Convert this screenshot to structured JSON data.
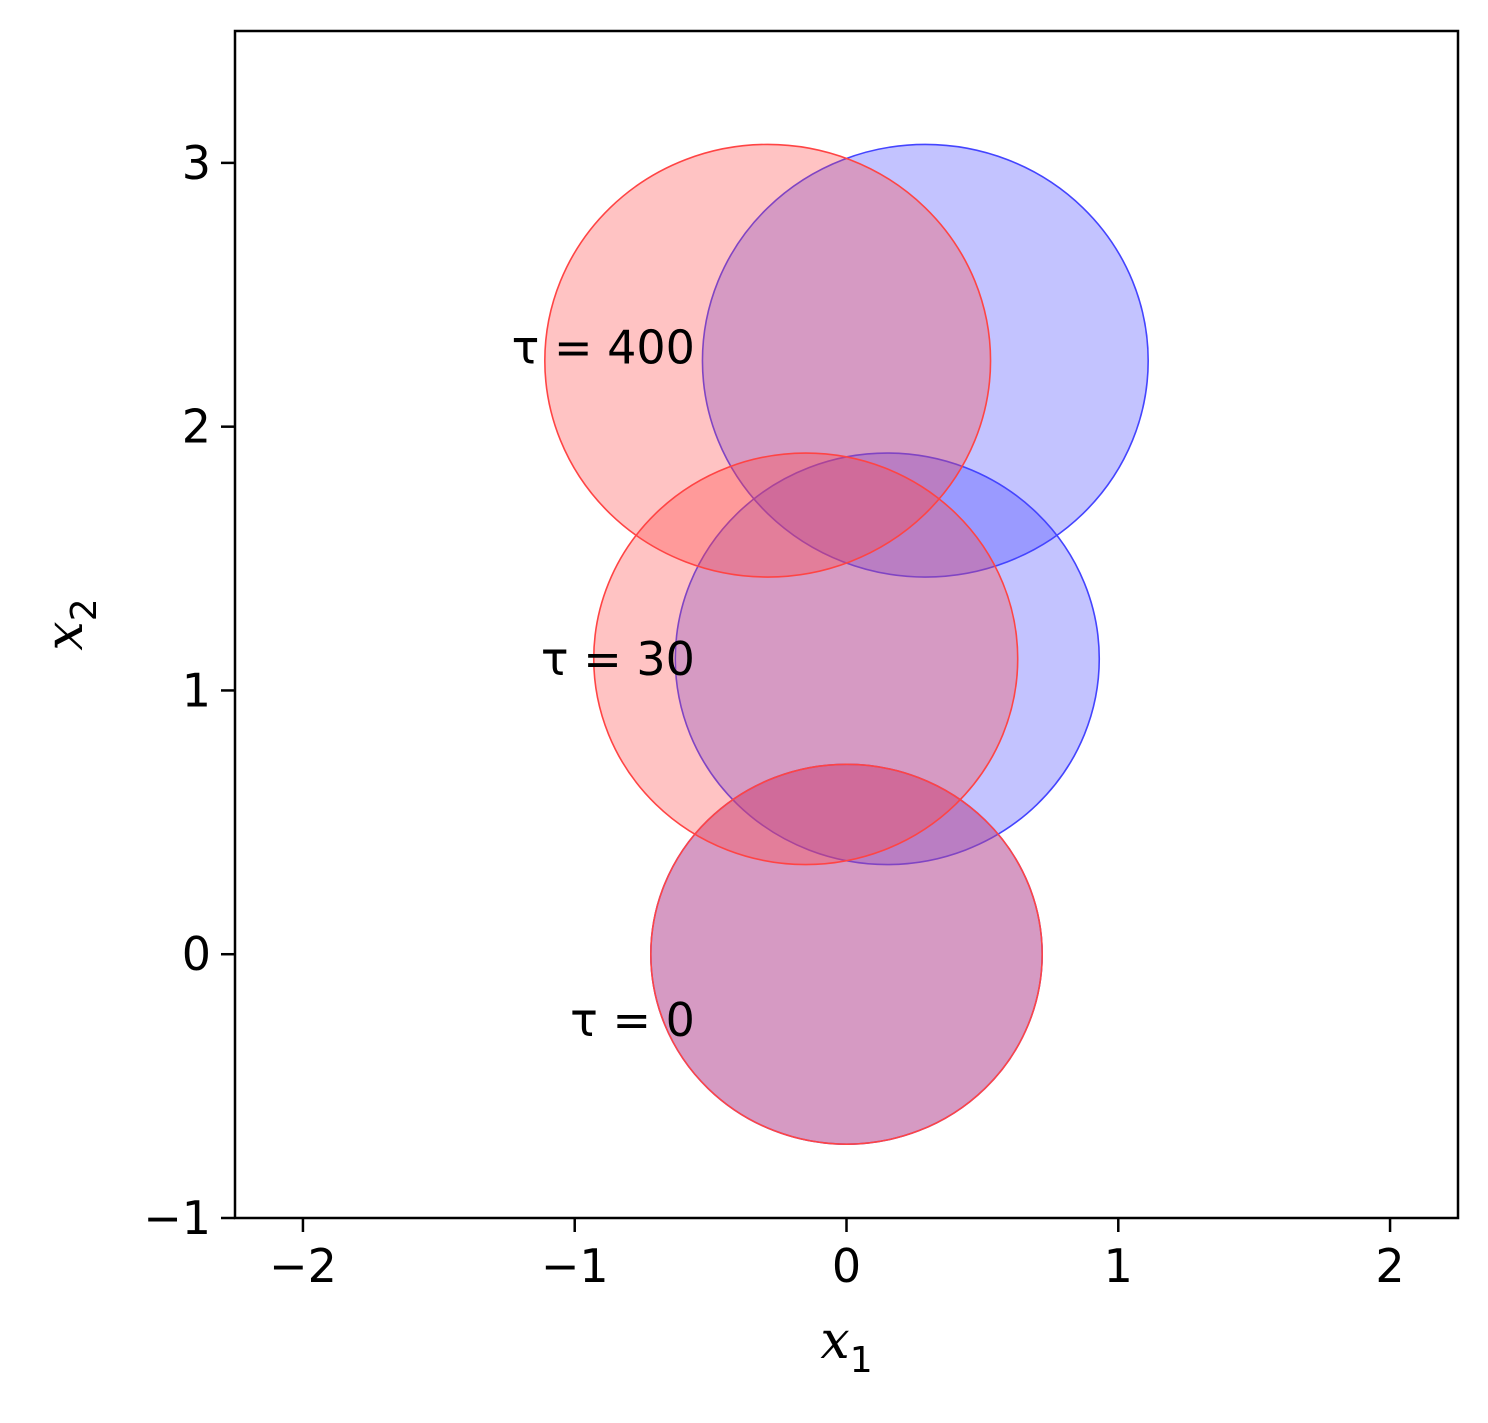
{
  "chart_data": {
    "type": "scatter",
    "xlabel": "x",
    "xlabel_sub": "1",
    "ylabel": "x",
    "ylabel_sub": "2",
    "xlim": [
      -2.25,
      2.25
    ],
    "ylim": [
      -1,
      3.5
    ],
    "xticks": [
      -2,
      -1,
      0,
      1,
      2
    ],
    "xtick_labels": [
      "−2",
      "−1",
      "0",
      "1",
      "2"
    ],
    "yticks": [
      -1,
      0,
      1,
      2,
      3
    ],
    "ytick_labels": [
      "−1",
      "0",
      "1",
      "2",
      "3"
    ],
    "grid": false,
    "series": [
      {
        "color": "#ff4444",
        "circles": [
          {
            "cx": 0.0,
            "cy": 0.0,
            "r": 0.72
          },
          {
            "cx": -0.15,
            "cy": 1.12,
            "r": 0.78
          },
          {
            "cx": -0.29,
            "cy": 2.25,
            "r": 0.82
          }
        ]
      },
      {
        "color": "#4444ff",
        "circles": [
          {
            "cx": 0.0,
            "cy": 0.0,
            "r": 0.72
          },
          {
            "cx": 0.15,
            "cy": 1.12,
            "r": 0.78
          },
          {
            "cx": 0.29,
            "cy": 2.25,
            "r": 0.82
          }
        ]
      }
    ],
    "annotations": [
      {
        "text": "τ = 400",
        "x": -1.22,
        "y": 2.3
      },
      {
        "text": "τ = 30",
        "x": -1.22,
        "y": 1.12
      },
      {
        "text": "τ = 0",
        "x": -1.22,
        "y": -0.25
      }
    ]
  }
}
